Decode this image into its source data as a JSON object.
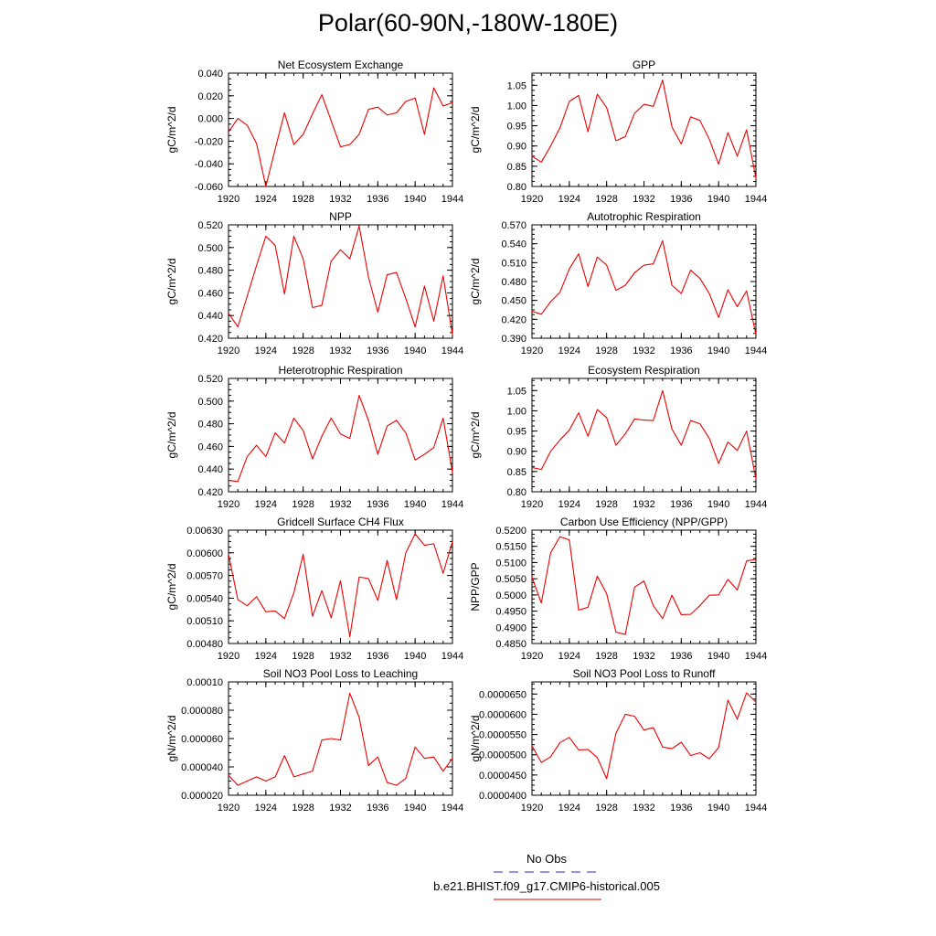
{
  "figure": {
    "title": "Polar(60-90N,-180W-180E)",
    "legend": [
      {
        "label": "No Obs",
        "color": "#5555cc",
        "style": "dashed"
      },
      {
        "label": "b.e21.BHIST.f09_g17.CMIP6-historical.005",
        "color": "#ee3333",
        "style": "solid"
      }
    ]
  },
  "chart_data": [
    {
      "type": "line",
      "title": "Net Ecosystem Exchange",
      "ylabel": "gC/m^2/d",
      "xlabel": "",
      "xlim": [
        1920,
        1944
      ],
      "ylim": [
        -0.06,
        0.04
      ],
      "xticks": [
        1920,
        1924,
        1928,
        1932,
        1936,
        1940,
        1944
      ],
      "yticks": [
        "0.040",
        "0.020",
        "0.000",
        "-0.020",
        "-0.040",
        "-0.060"
      ],
      "ytick_values": [
        0.04,
        0.02,
        0.0,
        -0.02,
        -0.04,
        -0.06
      ],
      "x": [
        1920,
        1921,
        1922,
        1923,
        1924,
        1925,
        1926,
        1927,
        1928,
        1929,
        1930,
        1931,
        1932,
        1933,
        1934,
        1935,
        1936,
        1937,
        1938,
        1939,
        1940,
        1941,
        1942,
        1943,
        1944
      ],
      "series": [
        {
          "name": "b.e21.BHIST.f09_g17.CMIP6-historical.005",
          "color": "#ee0000",
          "values": [
            -0.012,
            0.0,
            -0.006,
            -0.022,
            -0.06,
            -0.027,
            0.005,
            -0.023,
            -0.014,
            0.004,
            0.021,
            -0.002,
            -0.025,
            -0.023,
            -0.014,
            0.008,
            0.01,
            0.003,
            0.005,
            0.015,
            0.018,
            -0.014,
            0.027,
            0.011,
            0.014
          ]
        }
      ]
    },
    {
      "type": "line",
      "title": "GPP",
      "ylabel": "gC/m^2/d",
      "xlabel": "",
      "xlim": [
        1920,
        1944
      ],
      "ylim": [
        0.8,
        1.08
      ],
      "xticks": [
        1920,
        1924,
        1928,
        1932,
        1936,
        1940,
        1944
      ],
      "yticks": [
        "1.05",
        "1.00",
        "0.95",
        "0.90",
        "0.85",
        "0.80"
      ],
      "ytick_values": [
        1.05,
        1.0,
        0.95,
        0.9,
        0.85,
        0.8
      ],
      "x": [
        1920,
        1921,
        1922,
        1923,
        1924,
        1925,
        1926,
        1927,
        1928,
        1929,
        1930,
        1931,
        1932,
        1933,
        1934,
        1935,
        1936,
        1937,
        1938,
        1939,
        1940,
        1941,
        1942,
        1943,
        1944
      ],
      "series": [
        {
          "name": "b.e21.BHIST.f09_g17.CMIP6-historical.005",
          "color": "#ee0000",
          "values": [
            0.875,
            0.86,
            0.9,
            0.945,
            1.01,
            1.025,
            0.935,
            1.028,
            0.995,
            0.913,
            0.923,
            0.981,
            1.003,
            0.998,
            1.063,
            0.947,
            0.905,
            0.972,
            0.963,
            0.917,
            0.855,
            0.933,
            0.875,
            0.94,
            0.82
          ]
        }
      ]
    },
    {
      "type": "line",
      "title": "NPP",
      "ylabel": "gC/m^2/d",
      "xlabel": "",
      "xlim": [
        1920,
        1944
      ],
      "ylim": [
        0.42,
        0.52
      ],
      "xticks": [
        1920,
        1924,
        1928,
        1932,
        1936,
        1940,
        1944
      ],
      "yticks": [
        "0.520",
        "0.500",
        "0.480",
        "0.460",
        "0.440",
        "0.420"
      ],
      "ytick_values": [
        0.52,
        0.5,
        0.48,
        0.46,
        0.44,
        0.42
      ],
      "x": [
        1920,
        1921,
        1922,
        1923,
        1924,
        1925,
        1926,
        1927,
        1928,
        1929,
        1930,
        1931,
        1932,
        1933,
        1934,
        1935,
        1936,
        1937,
        1938,
        1939,
        1940,
        1941,
        1942,
        1943,
        1944
      ],
      "series": [
        {
          "name": "b.e21.BHIST.f09_g17.CMIP6-historical.005",
          "color": "#ee0000",
          "values": [
            0.442,
            0.43,
            0.457,
            0.484,
            0.51,
            0.502,
            0.459,
            0.51,
            0.49,
            0.447,
            0.449,
            0.488,
            0.498,
            0.49,
            0.519,
            0.474,
            0.443,
            0.476,
            0.478,
            0.455,
            0.43,
            0.466,
            0.435,
            0.475,
            0.423
          ]
        }
      ]
    },
    {
      "type": "line",
      "title": "Autotrophic Respiration",
      "ylabel": "gC/m^2/d",
      "xlabel": "",
      "xlim": [
        1920,
        1944
      ],
      "ylim": [
        0.39,
        0.57
      ],
      "xticks": [
        1920,
        1924,
        1928,
        1932,
        1936,
        1940,
        1944
      ],
      "yticks": [
        "0.570",
        "0.540",
        "0.510",
        "0.480",
        "0.450",
        "0.420",
        "0.390"
      ],
      "ytick_values": [
        0.57,
        0.54,
        0.51,
        0.48,
        0.45,
        0.42,
        0.39
      ],
      "x": [
        1920,
        1921,
        1922,
        1923,
        1924,
        1925,
        1926,
        1927,
        1928,
        1929,
        1930,
        1931,
        1932,
        1933,
        1934,
        1935,
        1936,
        1937,
        1938,
        1939,
        1940,
        1941,
        1942,
        1943,
        1944
      ],
      "series": [
        {
          "name": "b.e21.BHIST.f09_g17.CMIP6-historical.005",
          "color": "#ee0000",
          "values": [
            0.433,
            0.428,
            0.448,
            0.463,
            0.5,
            0.524,
            0.472,
            0.519,
            0.506,
            0.466,
            0.474,
            0.494,
            0.506,
            0.508,
            0.545,
            0.474,
            0.461,
            0.498,
            0.485,
            0.461,
            0.423,
            0.467,
            0.44,
            0.465,
            0.396
          ]
        }
      ]
    },
    {
      "type": "line",
      "title": "Heterotrophic Respiration",
      "ylabel": "gC/m^2/d",
      "xlabel": "",
      "xlim": [
        1920,
        1944
      ],
      "ylim": [
        0.42,
        0.52
      ],
      "xticks": [
        1920,
        1924,
        1928,
        1932,
        1936,
        1940,
        1944
      ],
      "yticks": [
        "0.520",
        "0.500",
        "0.480",
        "0.460",
        "0.440",
        "0.420"
      ],
      "ytick_values": [
        0.52,
        0.5,
        0.48,
        0.46,
        0.44,
        0.42
      ],
      "x": [
        1920,
        1921,
        1922,
        1923,
        1924,
        1925,
        1926,
        1927,
        1928,
        1929,
        1930,
        1931,
        1932,
        1933,
        1934,
        1935,
        1936,
        1937,
        1938,
        1939,
        1940,
        1941,
        1942,
        1943,
        1944
      ],
      "series": [
        {
          "name": "b.e21.BHIST.f09_g17.CMIP6-historical.005",
          "color": "#ee0000",
          "values": [
            0.43,
            0.429,
            0.451,
            0.461,
            0.451,
            0.472,
            0.463,
            0.485,
            0.474,
            0.449,
            0.469,
            0.485,
            0.471,
            0.467,
            0.505,
            0.483,
            0.453,
            0.478,
            0.483,
            0.472,
            0.448,
            0.453,
            0.459,
            0.485,
            0.437
          ]
        }
      ]
    },
    {
      "type": "line",
      "title": "Ecosystem Respiration",
      "ylabel": "gC/m^2/d",
      "xlabel": "",
      "xlim": [
        1920,
        1944
      ],
      "ylim": [
        0.8,
        1.08
      ],
      "xticks": [
        1920,
        1924,
        1928,
        1932,
        1936,
        1940,
        1944
      ],
      "yticks": [
        "1.05",
        "1.00",
        "0.95",
        "0.90",
        "0.85",
        "0.80"
      ],
      "ytick_values": [
        1.05,
        1.0,
        0.95,
        0.9,
        0.85,
        0.8
      ],
      "x": [
        1920,
        1921,
        1922,
        1923,
        1924,
        1925,
        1926,
        1927,
        1928,
        1929,
        1930,
        1931,
        1932,
        1933,
        1934,
        1935,
        1936,
        1937,
        1938,
        1939,
        1940,
        1941,
        1942,
        1943,
        1944
      ],
      "series": [
        {
          "name": "b.e21.BHIST.f09_g17.CMIP6-historical.005",
          "color": "#ee0000",
          "values": [
            0.86,
            0.855,
            0.9,
            0.928,
            0.952,
            0.995,
            0.937,
            1.003,
            0.983,
            0.915,
            0.943,
            0.98,
            0.977,
            0.976,
            1.05,
            0.955,
            0.915,
            0.976,
            0.968,
            0.932,
            0.87,
            0.923,
            0.902,
            0.95,
            0.832
          ]
        }
      ]
    },
    {
      "type": "line",
      "title": "Gridcell Surface CH4 Flux",
      "ylabel": "gC/m^2/d",
      "xlabel": "",
      "xlim": [
        1920,
        1944
      ],
      "ylim": [
        0.0048,
        0.0063
      ],
      "xticks": [
        1920,
        1924,
        1928,
        1932,
        1936,
        1940,
        1944
      ],
      "yticks": [
        "0.00630",
        "0.00600",
        "0.00570",
        "0.00540",
        "0.00510",
        "0.00480"
      ],
      "ytick_values": [
        0.0063,
        0.006,
        0.0057,
        0.0054,
        0.0051,
        0.0048
      ],
      "x": [
        1920,
        1921,
        1922,
        1923,
        1924,
        1925,
        1926,
        1927,
        1928,
        1929,
        1930,
        1931,
        1932,
        1933,
        1934,
        1935,
        1936,
        1937,
        1938,
        1939,
        1940,
        1941,
        1942,
        1943,
        1944
      ],
      "series": [
        {
          "name": "b.e21.BHIST.f09_g17.CMIP6-historical.005",
          "color": "#ee0000",
          "values": [
            0.00598,
            0.00538,
            0.0053,
            0.00542,
            0.00522,
            0.00523,
            0.00513,
            0.00547,
            0.00598,
            0.00516,
            0.0055,
            0.00514,
            0.00563,
            0.00489,
            0.00568,
            0.00566,
            0.00537,
            0.0059,
            0.00538,
            0.006,
            0.00625,
            0.0061,
            0.00612,
            0.00573,
            0.00615
          ]
        }
      ]
    },
    {
      "type": "line",
      "title": "Carbon Use Efficiency (NPP/GPP)",
      "ylabel": "NPP/GPP",
      "xlabel": "",
      "xlim": [
        1920,
        1944
      ],
      "ylim": [
        0.485,
        0.52
      ],
      "xticks": [
        1920,
        1924,
        1928,
        1932,
        1936,
        1940,
        1944
      ],
      "yticks": [
        "0.5200",
        "0.5150",
        "0.5100",
        "0.5050",
        "0.5000",
        "0.4950",
        "0.4900",
        "0.4850"
      ],
      "ytick_values": [
        0.52,
        0.515,
        0.51,
        0.505,
        0.5,
        0.495,
        0.49,
        0.485
      ],
      "x": [
        1920,
        1921,
        1922,
        1923,
        1924,
        1925,
        1926,
        1927,
        1928,
        1929,
        1930,
        1931,
        1932,
        1933,
        1934,
        1935,
        1936,
        1937,
        1938,
        1939,
        1940,
        1941,
        1942,
        1943,
        1944
      ],
      "series": [
        {
          "name": "b.e21.BHIST.f09_g17.CMIP6-historical.005",
          "color": "#ee0000",
          "values": [
            0.5055,
            0.4975,
            0.513,
            0.518,
            0.517,
            0.4953,
            0.4962,
            0.5058,
            0.5004,
            0.4885,
            0.4878,
            0.5024,
            0.5043,
            0.4967,
            0.4927,
            0.4999,
            0.4939,
            0.494,
            0.4967,
            0.4999,
            0.5,
            0.5048,
            0.5015,
            0.5105,
            0.511
          ]
        }
      ]
    },
    {
      "type": "line",
      "title": "Soil NO3 Pool Loss to Leaching",
      "ylabel": "gN/m^2/d",
      "xlabel": "",
      "xlim": [
        1920,
        1944
      ],
      "ylim": [
        2e-05,
        0.0001
      ],
      "xticks": [
        1920,
        1924,
        1928,
        1932,
        1936,
        1940,
        1944
      ],
      "yticks": [
        "0.00010",
        "0.000080",
        "0.000060",
        "0.000040",
        "0.000020"
      ],
      "ytick_values": [
        0.0001,
        8e-05,
        6e-05,
        4e-05,
        2e-05
      ],
      "x": [
        1920,
        1921,
        1922,
        1923,
        1924,
        1925,
        1926,
        1927,
        1928,
        1929,
        1930,
        1931,
        1932,
        1933,
        1934,
        1935,
        1936,
        1937,
        1938,
        1939,
        1940,
        1941,
        1942,
        1943,
        1944
      ],
      "series": [
        {
          "name": "b.e21.BHIST.f09_g17.CMIP6-historical.005",
          "color": "#ee0000",
          "values": [
            3.4e-05,
            2.7e-05,
            3e-05,
            3.3e-05,
            3e-05,
            3.3e-05,
            4.8e-05,
            3.3e-05,
            3.5e-05,
            3.7e-05,
            5.9e-05,
            6e-05,
            5.9e-05,
            9.2e-05,
            7.5e-05,
            4.1e-05,
            4.7e-05,
            2.9e-05,
            2.7e-05,
            3.2e-05,
            5.4e-05,
            4.6e-05,
            4.7e-05,
            3.7e-05,
            4.6e-05
          ]
        }
      ]
    },
    {
      "type": "line",
      "title": "Soil NO3 Pool Loss to Runoff",
      "ylabel": "gN/m^2/d",
      "xlabel": "",
      "xlim": [
        1920,
        1944
      ],
      "ylim": [
        4e-05,
        6.8e-05
      ],
      "xticks": [
        1920,
        1924,
        1928,
        1932,
        1936,
        1940,
        1944
      ],
      "yticks": [
        "0.0000650",
        "0.0000600",
        "0.0000550",
        "0.0000500",
        "0.0000450",
        "0.0000400"
      ],
      "ytick_values": [
        6.5e-05,
        6e-05,
        5.5e-05,
        5e-05,
        4.5e-05,
        4e-05
      ],
      "x": [
        1920,
        1921,
        1922,
        1923,
        1924,
        1925,
        1926,
        1927,
        1928,
        1929,
        1930,
        1931,
        1932,
        1933,
        1934,
        1935,
        1936,
        1937,
        1938,
        1939,
        1940,
        1941,
        1942,
        1943,
        1944
      ],
      "series": [
        {
          "name": "b.e21.BHIST.f09_g17.CMIP6-historical.005",
          "color": "#ee0000",
          "values": [
            5.22e-05,
            4.81e-05,
            4.95e-05,
            5.3e-05,
            5.43e-05,
            5.12e-05,
            5.13e-05,
            4.93e-05,
            4.41e-05,
            5.53e-05,
            6e-05,
            5.95e-05,
            5.61e-05,
            5.67e-05,
            5.19e-05,
            5.15e-05,
            5.31e-05,
            4.98e-05,
            5.05e-05,
            4.9e-05,
            5.18e-05,
            6.35e-05,
            5.88e-05,
            6.53e-05,
            6.3e-05
          ]
        }
      ]
    }
  ]
}
